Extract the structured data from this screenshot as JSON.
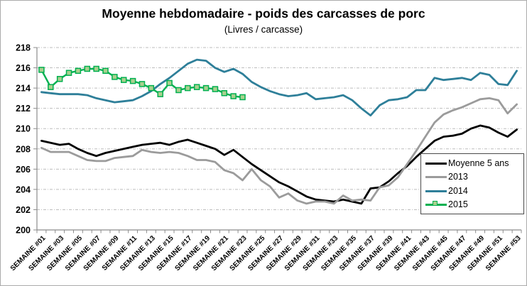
{
  "chart_data": {
    "type": "line",
    "title": "Moyenne hebdomadaire - poids des carcasses de porc",
    "subtitle": "(Livres / carcasse)",
    "ylabel": "",
    "xlabel": "",
    "ylim": [
      200,
      218
    ],
    "y_ticks": [
      200,
      202,
      204,
      206,
      208,
      210,
      212,
      214,
      216,
      218
    ],
    "x_weeks_total": 53,
    "x_tick_labels": [
      "SEMAINE #01",
      "SEMAINE #03",
      "SEMAINE #05",
      "SEMAINE #07",
      "SEMAINE #09",
      "SEMAINE #11",
      "SEMAINE #13",
      "SEMAINE #15",
      "SEMAINE #17",
      "SEMAINE #19",
      "SEMAINE #21",
      "SEMAINE #23",
      "SEMAINE #25",
      "SEMAINE #27",
      "SEMAINE #29",
      "SEMAINE #31",
      "SEMAINE #33",
      "SEMAINE #35",
      "SEMAINE #37",
      "SEMAINE #39",
      "SEMAINE #41",
      "SEMAINE #43",
      "SEMAINE #45",
      "SEMAINE #47",
      "SEMAINE #49",
      "SEMAINE #51",
      "SEMAINE #53"
    ],
    "grid": "horizontal-dash-dot",
    "legend_position": "inside-bottom-right",
    "colors": {
      "axis": "#8c8c8c",
      "gridline": "#bdbdbd",
      "marker_fill": "#A9D08E"
    },
    "series": [
      {
        "name": "Moyenne 5 ans",
        "color": "#000000",
        "width": 2.8,
        "values": [
          208.8,
          208.6,
          208.4,
          208.5,
          208.0,
          207.6,
          207.3,
          207.6,
          207.8,
          208.0,
          208.2,
          208.4,
          208.5,
          208.6,
          208.4,
          208.7,
          208.9,
          208.6,
          208.3,
          208.0,
          207.4,
          207.9,
          207.2,
          206.5,
          205.9,
          205.3,
          204.7,
          204.3,
          203.8,
          203.3,
          203.0,
          202.9,
          202.8,
          203.0,
          202.8,
          202.6,
          204.1,
          204.2,
          204.8,
          205.6,
          206.3,
          207.2,
          208.0,
          208.8,
          209.2,
          209.3,
          209.5,
          210.0,
          210.3,
          210.1,
          209.6,
          209.2,
          209.9
        ]
      },
      {
        "name": "2013",
        "color": "#9b9b9b",
        "width": 2.8,
        "values": [
          208.1,
          207.7,
          207.7,
          207.7,
          207.3,
          206.9,
          206.8,
          206.8,
          207.1,
          207.2,
          207.3,
          207.9,
          207.7,
          207.6,
          207.7,
          207.6,
          207.3,
          206.9,
          206.9,
          206.7,
          205.9,
          205.6,
          204.9,
          206.0,
          204.9,
          204.3,
          203.2,
          203.6,
          202.9,
          202.6,
          202.8,
          202.8,
          202.6,
          203.4,
          202.9,
          203.0,
          202.9,
          204.2,
          204.4,
          205.2,
          206.5,
          207.8,
          209.2,
          210.6,
          211.4,
          211.8,
          212.1,
          212.5,
          212.9,
          213.0,
          212.8,
          211.5,
          212.4
        ]
      },
      {
        "name": "2014",
        "color": "#2e7f99",
        "width": 2.8,
        "values": [
          213.6,
          213.5,
          213.4,
          213.4,
          213.4,
          213.3,
          213.0,
          212.8,
          212.6,
          212.7,
          212.8,
          213.2,
          213.7,
          214.4,
          215.0,
          215.7,
          216.4,
          216.8,
          216.7,
          216.0,
          215.6,
          215.9,
          215.4,
          214.6,
          214.1,
          213.7,
          213.4,
          213.2,
          213.3,
          213.5,
          212.9,
          213.0,
          213.1,
          213.3,
          212.8,
          212.0,
          211.3,
          212.3,
          212.8,
          212.9,
          213.1,
          213.8,
          213.8,
          215.0,
          214.8,
          214.9,
          215.0,
          214.8,
          215.5,
          215.3,
          214.4,
          214.3,
          215.7
        ]
      },
      {
        "name": "2015",
        "color": "#00B050",
        "width": 2.4,
        "marker": {
          "shape": "square",
          "size": 7,
          "fill": "#A9D08E",
          "stroke": "#00B050"
        },
        "values": [
          215.8,
          214.1,
          214.9,
          215.5,
          215.7,
          215.9,
          215.9,
          215.7,
          215.1,
          214.8,
          214.7,
          214.4,
          214.0,
          213.4,
          214.5,
          213.8,
          214.0,
          214.1,
          214.0,
          213.9,
          213.5,
          213.2,
          213.1
        ]
      }
    ]
  }
}
